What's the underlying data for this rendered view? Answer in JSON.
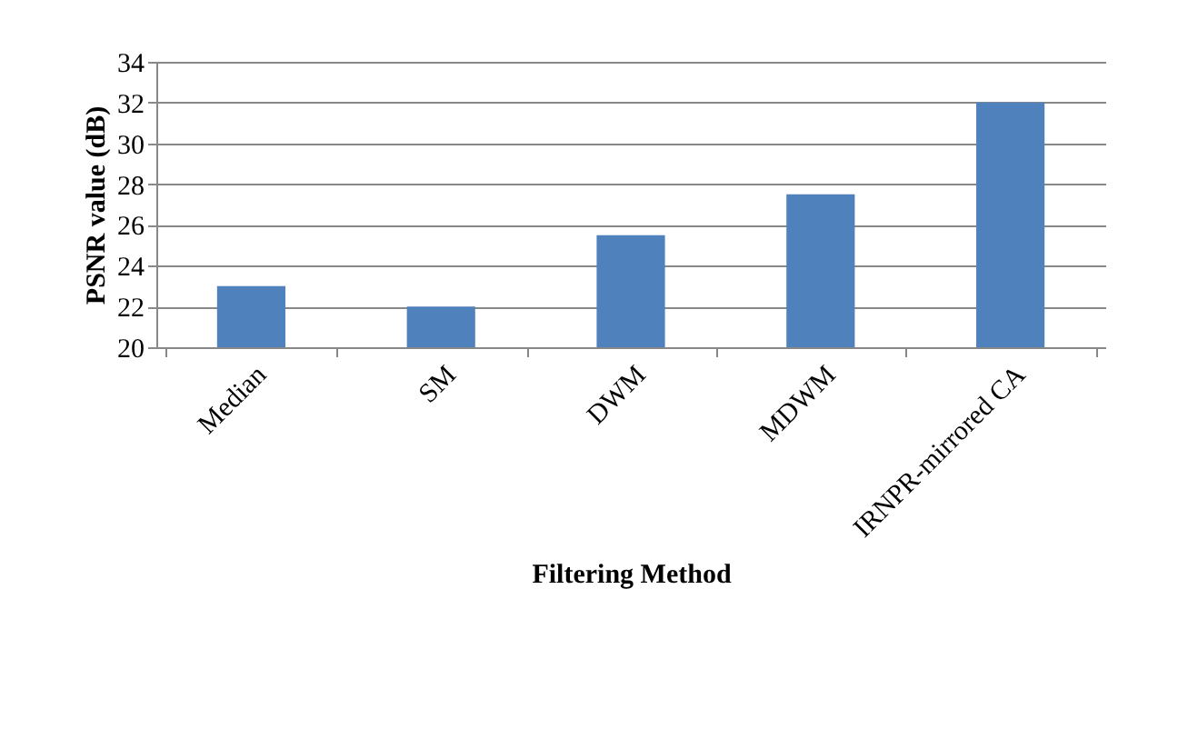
{
  "chart_data": {
    "type": "bar",
    "xlabel": "Filtering Method",
    "ylabel": "PSNR value (dB)",
    "categories": [
      "Median",
      "SM",
      "DWM",
      "MDWM",
      "IRNPR-mirrored CA"
    ],
    "values": [
      23,
      22,
      25.5,
      27.5,
      32
    ],
    "color": "#4f81bd",
    "ylim": [
      20,
      34
    ],
    "yticks": [
      20,
      22,
      24,
      26,
      28,
      30,
      32,
      34
    ],
    "grid": "y"
  }
}
